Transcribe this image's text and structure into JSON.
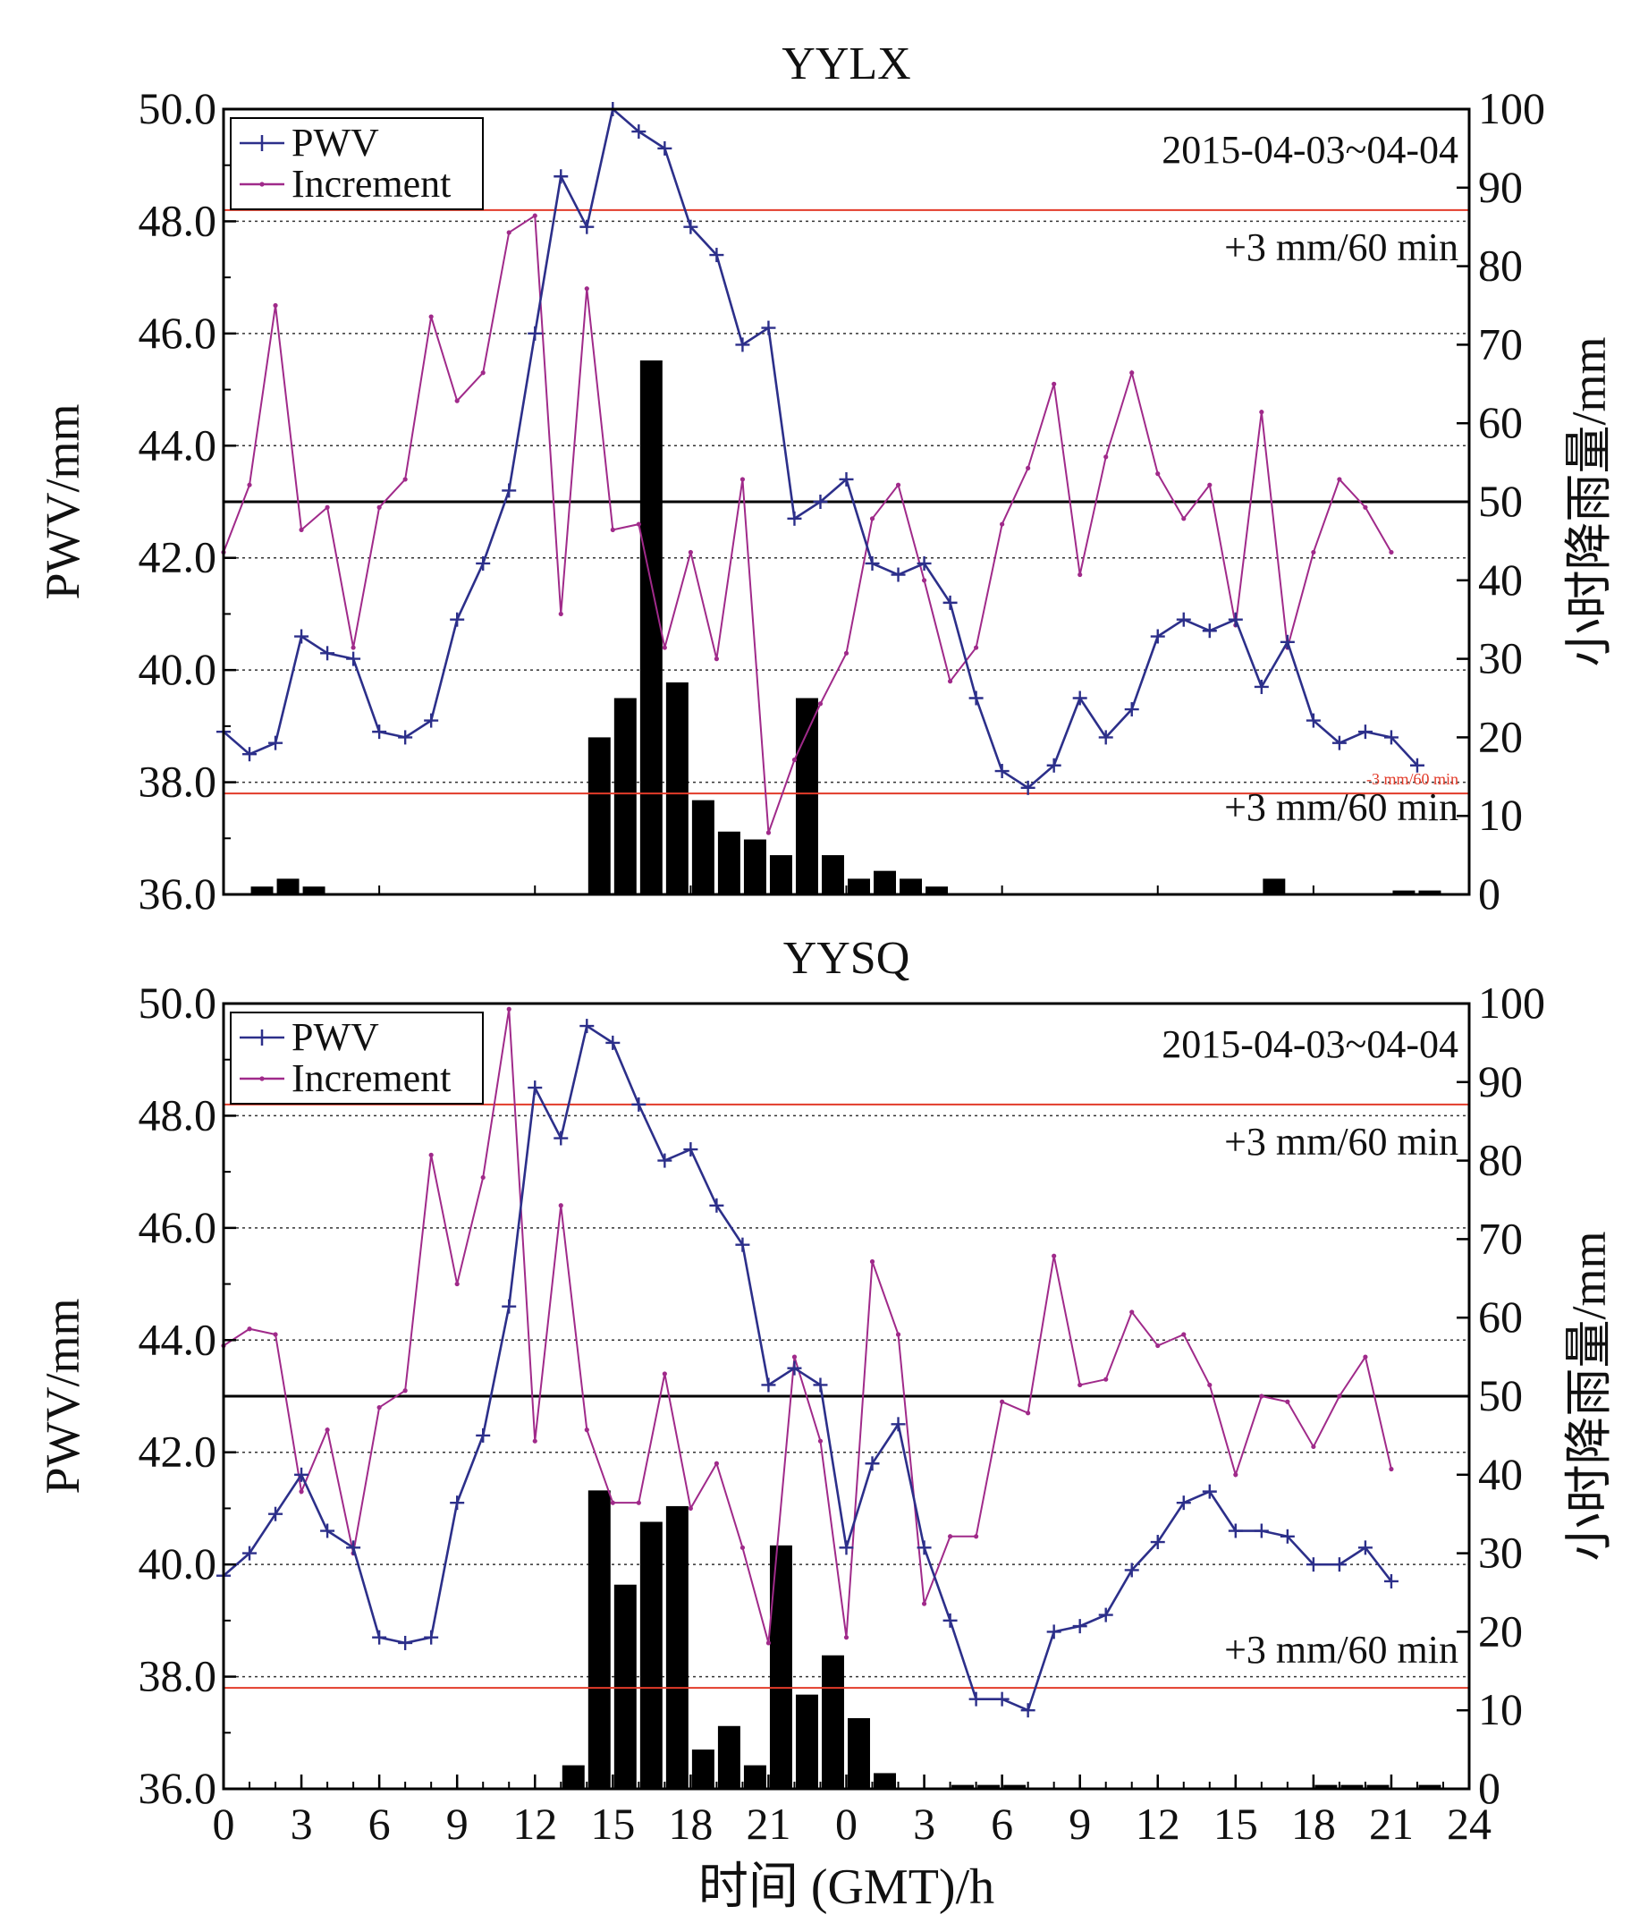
{
  "chart_data": [
    {
      "type": "line+bar",
      "title": "YYLX",
      "date_label": "2015-04-03~04-04",
      "ylabel_left": "PWV/mm",
      "ylabel_right": "小时降雨量/mm",
      "ylim_left": [
        36,
        50
      ],
      "ylim_right": [
        0,
        100
      ],
      "yticks_left": [
        "36.0",
        "38.0",
        "40.0",
        "42.0",
        "44.0",
        "46.0",
        "48.0",
        "50.0"
      ],
      "yticks_right": [
        "0",
        "10",
        "20",
        "30",
        "40",
        "50",
        "60",
        "70",
        "80",
        "90",
        "100"
      ],
      "legend": [
        "PWV",
        "Increment"
      ],
      "threshold_upper": 48.2,
      "threshold_lower": 37.8,
      "threshold_labels": [
        "+3 mm/60 min",
        "+3 mm/60 min",
        "-3 mm/60 min"
      ],
      "mean_line": 43.0,
      "series": [
        {
          "name": "PWV",
          "color": "#2c2f8a",
          "values": [
            38.9,
            38.5,
            38.7,
            40.6,
            40.3,
            40.2,
            38.9,
            38.8,
            39.1,
            40.9,
            41.9,
            43.2,
            46.0,
            48.8,
            47.9,
            50.0,
            49.6,
            49.3,
            47.9,
            47.4,
            45.8,
            46.1,
            42.7,
            43.0,
            43.4,
            41.9,
            41.7,
            41.9,
            41.2,
            39.5,
            38.2,
            37.9,
            38.3,
            39.5,
            38.8,
            39.3,
            40.6,
            40.9,
            40.7,
            40.9,
            39.7,
            40.5,
            39.1,
            38.7,
            38.9,
            38.8,
            38.3
          ]
        },
        {
          "name": "Increment",
          "color": "#a02a8a",
          "values": [
            42.1,
            43.3,
            46.5,
            42.5,
            42.9,
            40.4,
            42.9,
            43.4,
            46.3,
            44.8,
            45.3,
            47.8,
            48.1,
            41.0,
            46.8,
            42.5,
            42.6,
            40.4,
            42.1,
            40.2,
            43.4,
            37.1,
            38.4,
            39.4,
            40.3,
            42.7,
            43.3,
            41.6,
            39.8,
            40.4,
            42.6,
            43.6,
            45.1,
            41.7,
            43.8,
            45.3,
            43.5,
            42.7,
            43.3,
            40.8,
            44.6,
            40.4,
            42.1,
            43.4,
            42.9,
            42.1
          ]
        },
        {
          "name": "Hourly rainfall",
          "color": "#000000",
          "axis": "right",
          "values": [
            0,
            1,
            2,
            1,
            0,
            0,
            0,
            0,
            0,
            0,
            0,
            0,
            0,
            0,
            20,
            25,
            68,
            27,
            12,
            8,
            7,
            5,
            25,
            5,
            2,
            3,
            2,
            1,
            0,
            0,
            0,
            0,
            0,
            0,
            0,
            0,
            0,
            0,
            0,
            0,
            2,
            0,
            0,
            0,
            0,
            0.5,
            0.5
          ]
        }
      ]
    },
    {
      "type": "line+bar",
      "title": "YYSQ",
      "date_label": "2015-04-03~04-04",
      "ylabel_left": "PWV/mm",
      "ylabel_right": "小时降雨量/mm",
      "ylim_left": [
        36,
        50
      ],
      "ylim_right": [
        0,
        100
      ],
      "yticks_left": [
        "36.0",
        "38.0",
        "40.0",
        "42.0",
        "44.0",
        "46.0",
        "48.0",
        "50.0"
      ],
      "yticks_right": [
        "0",
        "10",
        "20",
        "30",
        "40",
        "50",
        "60",
        "70",
        "80",
        "90",
        "100"
      ],
      "legend": [
        "PWV",
        "Increment"
      ],
      "threshold_upper": 48.2,
      "threshold_lower": 37.8,
      "threshold_labels": [
        "+3 mm/60 min",
        "+3 mm/60 min"
      ],
      "mean_line": 43.0,
      "xlabel": "时间 (GMT)/h",
      "xticks": [
        "0",
        "3",
        "6",
        "9",
        "12",
        "15",
        "18",
        "21",
        "0",
        "3",
        "6",
        "9",
        "12",
        "15",
        "18",
        "21",
        "24"
      ],
      "series": [
        {
          "name": "PWV",
          "color": "#2c2f8a",
          "values": [
            39.8,
            40.2,
            40.9,
            41.6,
            40.6,
            40.3,
            38.7,
            38.6,
            38.7,
            41.1,
            42.3,
            44.6,
            48.5,
            47.6,
            49.6,
            49.3,
            48.2,
            47.2,
            47.4,
            46.4,
            45.7,
            43.2,
            43.5,
            43.2,
            40.3,
            41.8,
            42.5,
            40.3,
            39.0,
            37.6,
            37.6,
            37.4,
            38.8,
            38.9,
            39.1,
            39.9,
            40.4,
            41.1,
            41.3,
            40.6,
            40.6,
            40.5,
            40.0,
            40.0,
            40.3,
            39.7
          ]
        },
        {
          "name": "Increment",
          "color": "#a02a8a",
          "values": [
            43.9,
            44.2,
            44.1,
            41.3,
            42.4,
            40.2,
            42.8,
            43.1,
            47.3,
            45.0,
            46.9,
            49.9,
            42.2,
            46.4,
            42.4,
            41.1,
            41.1,
            43.4,
            41.0,
            41.8,
            40.3,
            38.6,
            43.7,
            42.2,
            38.7,
            45.4,
            44.1,
            39.3,
            40.5,
            40.5,
            42.9,
            42.7,
            45.5,
            43.2,
            43.3,
            44.5,
            43.9,
            44.1,
            43.2,
            41.6,
            43.0,
            42.9,
            42.1,
            43.0,
            43.7,
            41.7
          ]
        },
        {
          "name": "Hourly rainfall",
          "color": "#000000",
          "axis": "right",
          "values": [
            0,
            0,
            0,
            0,
            0,
            0,
            0,
            0,
            0,
            0,
            0,
            0,
            0,
            3,
            38,
            26,
            34,
            36,
            5,
            8,
            3,
            31,
            12,
            17,
            9,
            2,
            0,
            0,
            0.5,
            0.5,
            0.5,
            0,
            0,
            0,
            0,
            0,
            0,
            0,
            0,
            0,
            0,
            0,
            0.5,
            0.5,
            0.5,
            0,
            0.5
          ]
        }
      ]
    }
  ]
}
